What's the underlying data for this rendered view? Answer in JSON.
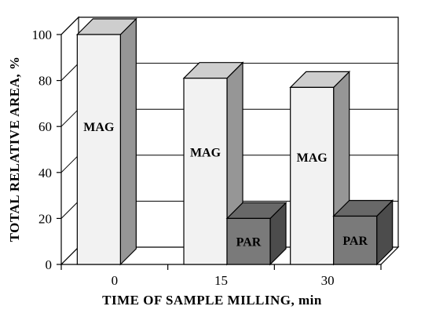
{
  "chart_data": {
    "type": "bar",
    "xlabel": "TIME OF SAMPLE MILLING, min",
    "ylabel": "TOTAL RELATIVE AREA, %",
    "ylim": [
      0,
      100
    ],
    "yticks": [
      "0",
      "20",
      "40",
      "60",
      "80",
      "100"
    ],
    "categories": [
      "0",
      "15",
      "30"
    ],
    "grid": true,
    "style": "3d",
    "series": [
      {
        "name": "MAG",
        "values": [
          100,
          81,
          77
        ],
        "color": "#f2f2f2"
      },
      {
        "name": "PAR",
        "values": [
          null,
          20,
          21
        ],
        "color": "#7a7a7a"
      }
    ],
    "bar_labels": [
      {
        "text": "MAG",
        "category": "0",
        "series": "MAG"
      },
      {
        "text": "MAG",
        "category": "15",
        "series": "MAG"
      },
      {
        "text": "PAR",
        "category": "15",
        "series": "PAR"
      },
      {
        "text": "MAG",
        "category": "30",
        "series": "MAG"
      },
      {
        "text": "PAR",
        "category": "30",
        "series": "PAR"
      }
    ]
  }
}
